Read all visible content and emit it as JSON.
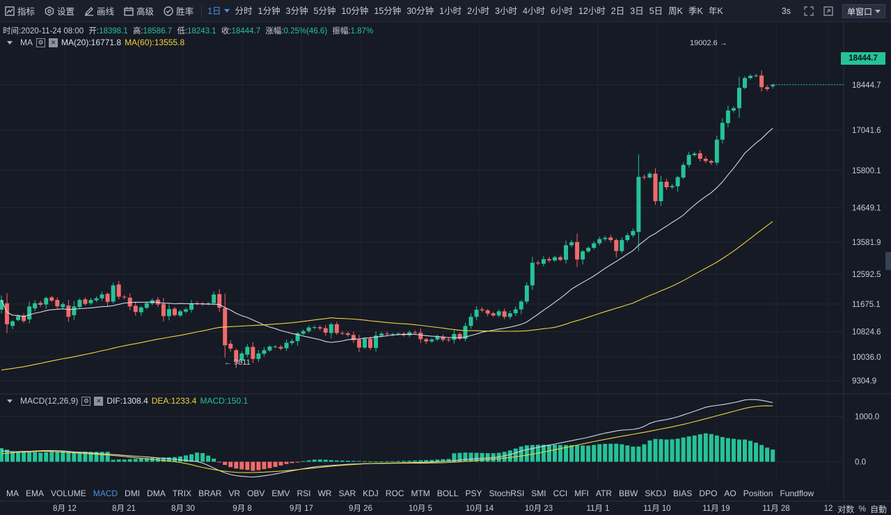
{
  "toolbar": {
    "tools": [
      {
        "label": "指标",
        "icon": "indicator-icon"
      },
      {
        "label": "设置",
        "icon": "settings-icon"
      },
      {
        "label": "画线",
        "icon": "pen-icon"
      },
      {
        "label": "高级",
        "icon": "advanced-icon"
      },
      {
        "label": "胜率",
        "icon": "winrate-icon"
      }
    ],
    "active_interval": "1日",
    "intervals": [
      "分时",
      "1分钟",
      "3分钟",
      "5分钟",
      "10分钟",
      "15分钟",
      "30分钟",
      "1小时",
      "2小时",
      "3小时",
      "4小时",
      "6小时",
      "12小时",
      "2日",
      "3日",
      "5日",
      "周K",
      "季K",
      "年K"
    ],
    "refresh": "3s",
    "window_select": "单窗口"
  },
  "ohlc": {
    "time_label": "时间:",
    "time": "2020-11-24 08:00",
    "open_label": "开:",
    "open": "18398.1",
    "high_label": "高:",
    "high": "18586.7",
    "low_label": "低:",
    "low": "18243.1",
    "close_label": "收:",
    "close": "18444.7",
    "change_label": "涨幅:",
    "change": "0.25%(46.6)",
    "amplitude_label": "振幅:",
    "amplitude": "1.87%"
  },
  "ma_legend": {
    "name": "MA",
    "ma20": "MA(20):16771.8",
    "ma60": "MA(60):13555.8"
  },
  "macd_legend": {
    "name": "MACD(12,26,9)",
    "dif": "DIF:1308.4",
    "dea": "DEA:1233.4",
    "macd": "MACD:150.1"
  },
  "last_price": "18444.7",
  "indicator_tabs": [
    "MA",
    "EMA",
    "VOLUME",
    "MACD",
    "DMI",
    "DMA",
    "TRIX",
    "BRAR",
    "VR",
    "OBV",
    "EMV",
    "RSI",
    "WR",
    "SAR",
    "KDJ",
    "ROC",
    "MTM",
    "BOLL",
    "PSY",
    "StochRSI",
    "SMI",
    "CCI",
    "MFI",
    "ATR",
    "BBW",
    "SKDJ",
    "BIAS",
    "DPO",
    "AO",
    "Position",
    "Fundflow"
  ],
  "active_indicator": "MACD",
  "bottom_right": {
    "log": "对数",
    "percent": "%",
    "auto": "自動"
  },
  "colors": {
    "up": "#26c297",
    "down": "#f06a6a",
    "ma20": "#d7dae3",
    "ma60": "#f0d43a",
    "background": "#161a25",
    "accent": "#4a90e2"
  },
  "chart_data": {
    "type": "candlestick",
    "price_axis": {
      "ticks": [
        9304.9,
        10036.0,
        10824.6,
        11675.1,
        12592.5,
        13581.9,
        14649.1,
        15800.1,
        17041.6,
        18444.7
      ],
      "min": 8900,
      "max": 19600
    },
    "macd_axis": {
      "ticks": [
        0.0,
        1000.0
      ],
      "min": -500,
      "max": 1500
    },
    "x_ticks": [
      "8月 12",
      "8月 21",
      "8月 30",
      "9月 8",
      "9月 17",
      "9月 26",
      "10月 5",
      "10月 14",
      "10月 23",
      "11月 1",
      "11月 10",
      "11月 19",
      "11月 28",
      "12"
    ],
    "start_date": "2020-08-01",
    "annotations": [
      {
        "text": "19002.6 →",
        "type": "high",
        "value": 19002.6
      },
      {
        "text": "← 9811",
        "type": "low",
        "value": 9811
      }
    ],
    "close": [
      11800,
      11050,
      11140,
      11300,
      11150,
      11600,
      11700,
      11650,
      11860,
      11780,
      11600,
      11670,
      11280,
      11600,
      11800,
      11680,
      11800,
      11850,
      11970,
      11740,
      12250,
      11900,
      11880,
      11600,
      11430,
      11570,
      11700,
      11790,
      11660,
      11300,
      11520,
      11330,
      11450,
      11510,
      11700,
      11690,
      11680,
      11700,
      11970,
      11560,
      10400,
      10300,
      9900,
      10150,
      10350,
      9980,
      10150,
      10250,
      10360,
      10360,
      10300,
      10480,
      10530,
      10770,
      10840,
      10950,
      10960,
      10920,
      10790,
      11050,
      10780,
      10770,
      10720,
      10560,
      10330,
      10600,
      10320,
      10700,
      10760,
      10740,
      10750,
      10760,
      10710,
      10800,
      10780,
      10590,
      10520,
      10580,
      10670,
      10570,
      10560,
      10750,
      10600,
      11000,
      11280,
      11500,
      11480,
      11380,
      11320,
      11450,
      11280,
      11390,
      11510,
      11750,
      12250,
      12950,
      12930,
      13060,
      13020,
      13120,
      13040,
      13490,
      13580,
      13050,
      13300,
      13410,
      13550,
      13680,
      13720,
      13650,
      13310,
      13650,
      13800,
      13930,
      15600,
      15580,
      15700,
      14850,
      15450,
      15280,
      15320,
      15590,
      15970,
      16280,
      16320,
      16160,
      16090,
      16040,
      16750,
      17270,
      17650,
      17720,
      18350,
      18650,
      18720,
      18730,
      18370,
      18310,
      18444.7
    ],
    "open_offset": [
      -300,
      650,
      -140,
      -120,
      170,
      -400,
      -160,
      60,
      -200,
      100,
      200,
      -90,
      350,
      -270,
      -220,
      140,
      -100,
      -60,
      -120,
      250,
      -500,
      380,
      20,
      270,
      190,
      -150,
      -140,
      -100,
      150,
      380,
      -220,
      200,
      -130,
      -70,
      -200,
      10,
      20,
      -20,
      -270,
      420,
      1150,
      150,
      350,
      -220,
      -240,
      370,
      -170,
      -110,
      -120,
      0,
      50,
      -170,
      -60,
      -240,
      -80,
      -110,
      -20,
      40,
      140,
      -270,
      270,
      10,
      50,
      160,
      240,
      -270,
      280,
      -380,
      -60,
      20,
      -10,
      -10,
      50,
      -90,
      20,
      200,
      70,
      -60,
      -90,
      100,
      20,
      -180,
      150,
      -400,
      -280,
      -220,
      30,
      100,
      70,
      -130,
      170,
      -110,
      -120,
      -240,
      -500,
      -700,
      20,
      -140,
      40,
      -100,
      80,
      -450,
      -90,
      540,
      -250,
      -110,
      -140,
      -130,
      -40,
      80,
      340,
      -340,
      -150,
      -130,
      -1700,
      20,
      -120,
      850,
      -600,
      170,
      -40,
      -280,
      -390,
      -310,
      -50,
      170,
      70,
      50,
      -710,
      -520,
      -390,
      -70,
      -630,
      -300,
      -70,
      -10,
      360,
      60,
      -46.6
    ],
    "macd": {
      "dif": [
        240,
        230,
        220,
        230,
        230,
        240,
        245,
        250,
        245,
        240,
        225,
        212,
        208,
        195,
        185,
        175,
        165,
        155,
        140,
        130,
        120,
        110,
        98,
        85,
        72,
        60,
        45,
        30,
        15,
        0,
        -60,
        -130,
        -200,
        -260,
        -300,
        -320,
        -330,
        -340,
        -320,
        -300,
        -275,
        -245,
        -215,
        -190,
        -160,
        -135,
        -110,
        -95,
        -85,
        -75,
        -65,
        -55,
        -48,
        -42,
        -38,
        -34,
        -31,
        -28,
        -25,
        -22,
        -19,
        -15,
        -11,
        -7,
        0,
        10,
        20,
        35,
        50,
        60,
        70,
        80,
        90,
        110,
        140,
        180,
        230,
        270,
        300,
        330,
        360,
        390,
        420,
        450,
        480,
        510,
        540,
        580,
        620,
        650,
        680,
        700,
        710,
        720,
        770,
        850,
        900,
        920,
        950,
        990,
        1040,
        1090,
        1140,
        1200,
        1230,
        1250,
        1270,
        1300,
        1330,
        1370,
        1380,
        1370,
        1340,
        1308.4
      ],
      "dea": [
        180,
        190,
        205,
        210,
        215,
        225,
        235,
        230,
        222,
        212,
        205,
        195,
        185,
        175,
        165,
        155,
        145,
        130,
        115,
        100,
        85,
        70,
        55,
        40,
        25,
        10,
        -10,
        -40,
        -70,
        -110,
        -140,
        -170,
        -195,
        -215,
        -230,
        -238,
        -240,
        -238,
        -232,
        -225,
        -215,
        -205,
        -195,
        -180,
        -165,
        -150,
        -135,
        -120,
        -105,
        -90,
        -78,
        -66,
        -56,
        -48,
        -42,
        -38,
        -36,
        -34,
        -33,
        -32,
        -31,
        -30,
        -29,
        -27,
        -25,
        -20,
        -12,
        -3,
        8,
        20,
        32,
        44,
        56,
        70,
        86,
        104,
        124,
        148,
        174,
        202,
        232,
        262,
        294,
        326,
        358,
        390,
        422,
        452,
        482,
        512,
        540,
        568,
        594,
        620,
        646,
        674,
        704,
        734,
        764,
        796,
        830,
        866,
        904,
        944,
        984,
        1024,
        1064,
        1104,
        1144,
        1184,
        1214,
        1232,
        1238,
        1233.4
      ]
    }
  }
}
